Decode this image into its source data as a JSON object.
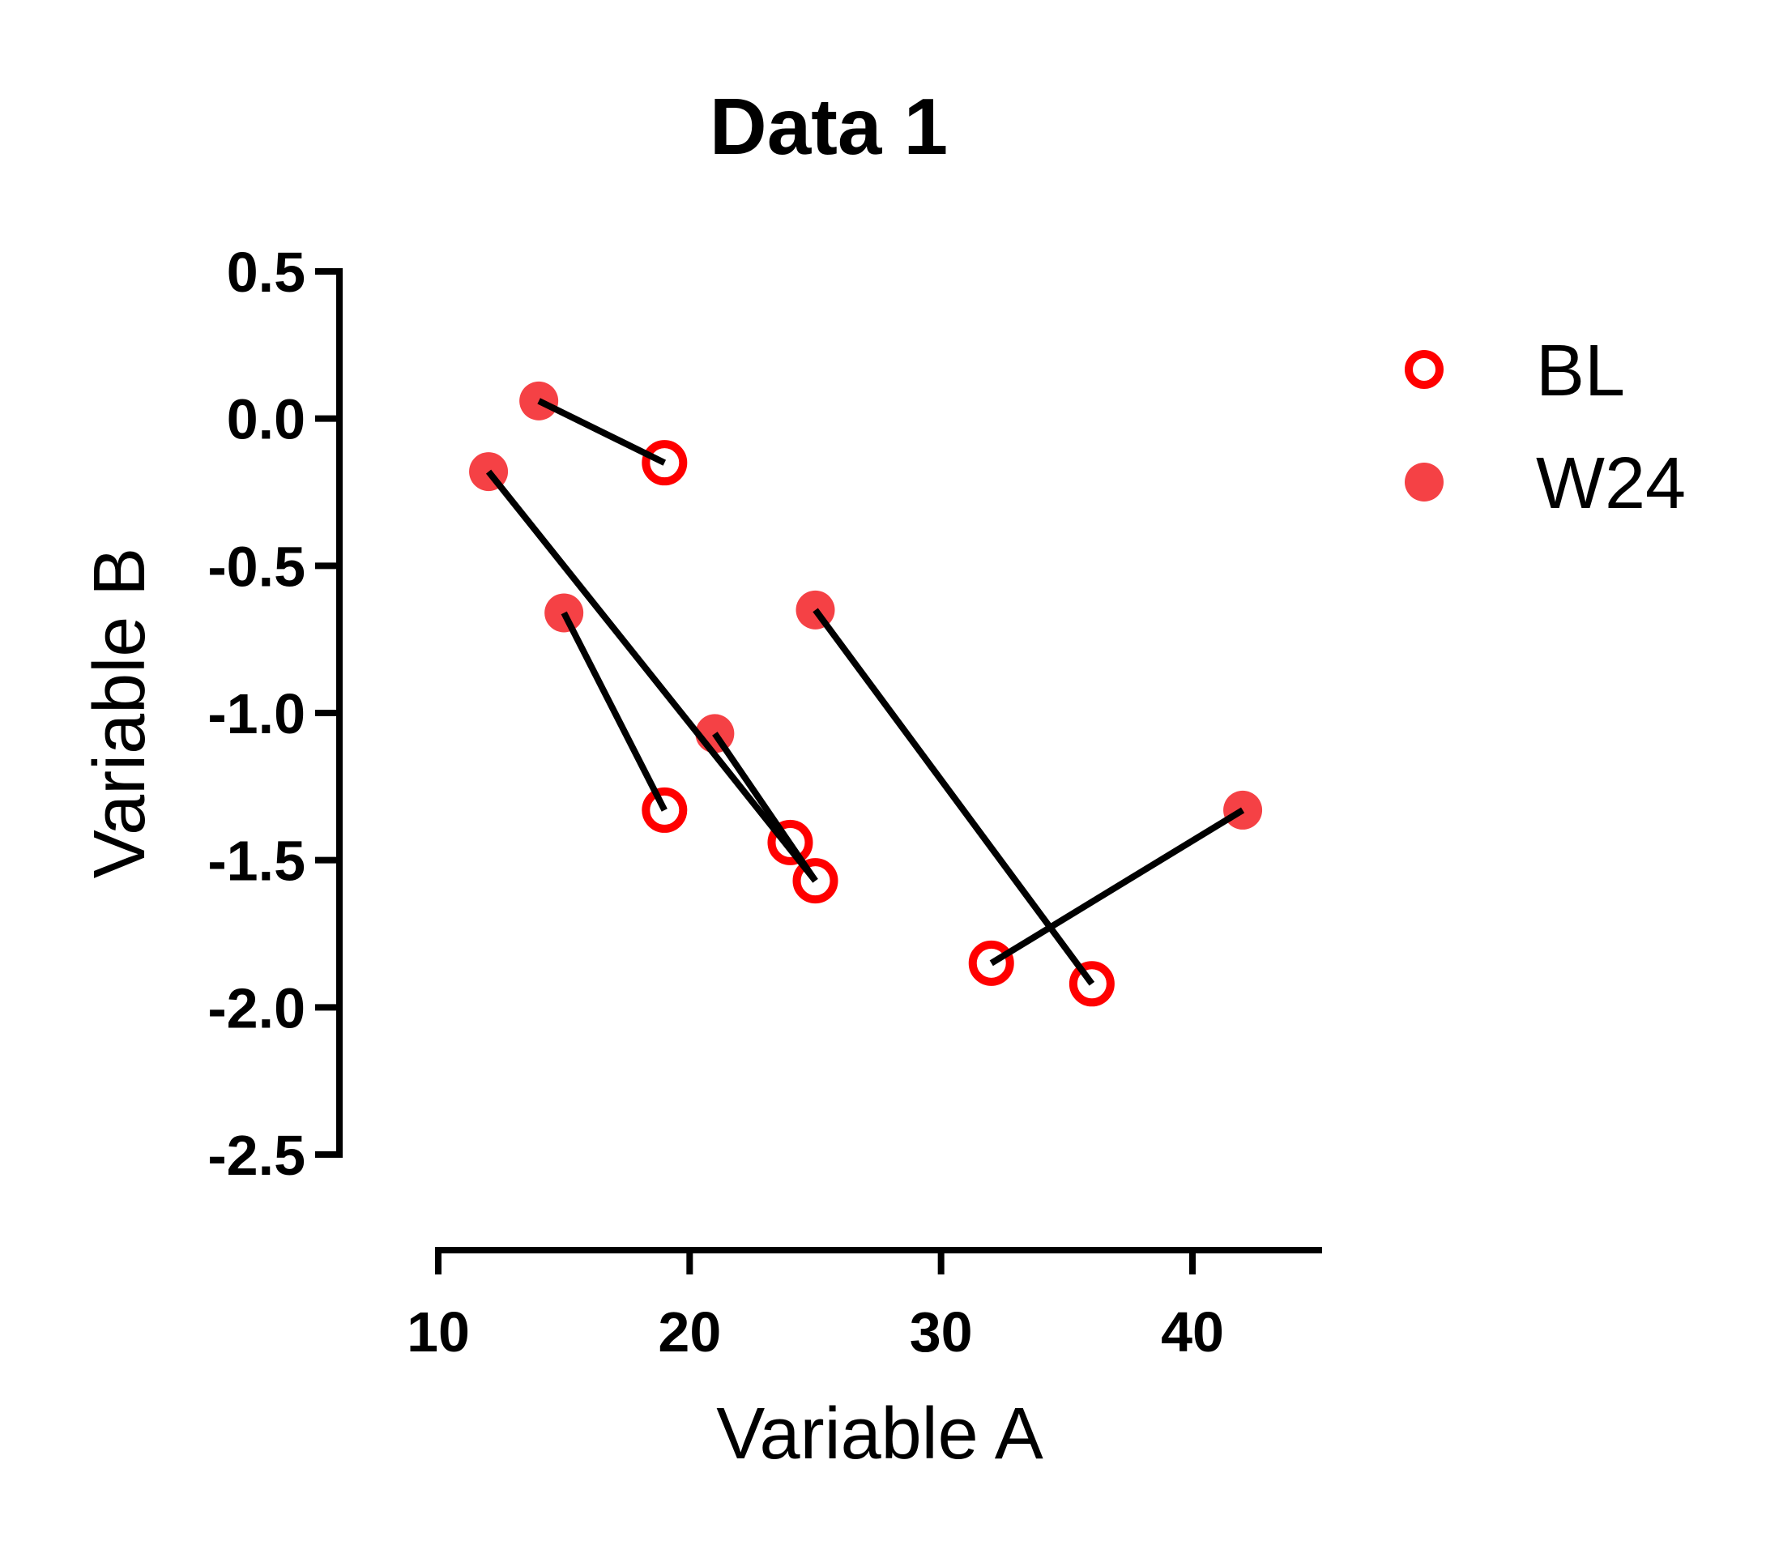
{
  "chart_data": {
    "type": "scatter",
    "title": "Data 1",
    "xlabel": "Variable A",
    "ylabel": "Variable B",
    "xlim": [
      10,
      45
    ],
    "ylim": [
      -2.5,
      0.5
    ],
    "xticks": [
      10,
      20,
      30,
      40
    ],
    "xtick_labels": [
      "10",
      "20",
      "30",
      "40"
    ],
    "yticks": [
      0.5,
      0.0,
      -0.5,
      -1.0,
      -1.5,
      -2.0,
      -2.5
    ],
    "ytick_labels": [
      "0.5",
      "0.0",
      "-0.5",
      "-1.0",
      "-1.5",
      "-2.0",
      "-2.5"
    ],
    "grid": false,
    "legend_position": "top-right",
    "series": [
      {
        "name": "BL",
        "marker": "open-circle",
        "color": "#ff0000",
        "x": [
          19,
          19,
          24,
          25,
          32,
          36
        ],
        "y": [
          -0.15,
          -1.33,
          -1.44,
          -1.57,
          -1.85,
          -1.92
        ]
      },
      {
        "name": "W24",
        "marker": "filled-circle",
        "color": "#f54145",
        "x": [
          14,
          12,
          15,
          21,
          25,
          42
        ],
        "y": [
          0.06,
          -0.18,
          -0.66,
          -1.07,
          -0.65,
          -1.33
        ]
      }
    ],
    "connecting_lines": [
      {
        "from": [
          14,
          0.06
        ],
        "to": [
          19,
          -0.15
        ]
      },
      {
        "from": [
          12,
          -0.18
        ],
        "to": [
          25,
          -1.57
        ]
      },
      {
        "from": [
          21,
          -1.07
        ],
        "to": [
          25,
          -1.57
        ]
      },
      {
        "from": [
          15,
          -0.66
        ],
        "to": [
          19,
          -1.33
        ]
      },
      {
        "from": [
          25,
          -0.65
        ],
        "to": [
          36,
          -1.92
        ]
      },
      {
        "from": [
          42,
          -1.33
        ],
        "to": [
          32,
          -1.85
        ]
      }
    ],
    "line_color": "#000000"
  }
}
